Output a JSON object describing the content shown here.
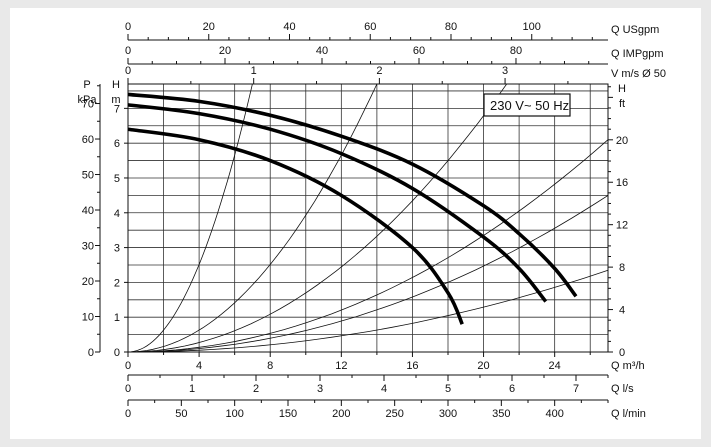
{
  "chart_data": {
    "type": "line",
    "legend_box": "230 V~ 50 Hz",
    "grid": true,
    "x": {
      "label": "Q m³/h",
      "range": [
        0,
        27
      ],
      "ticks": [
        0,
        4,
        8,
        12,
        16,
        20,
        24
      ]
    },
    "secondary_x_axes": [
      {
        "label": "Q USgpm",
        "position": "top",
        "ticks": [
          0,
          20,
          40,
          60,
          80,
          100
        ],
        "minor_step": 5,
        "m3h_per_unit": 0.2271
      },
      {
        "label": "Q IMPgpm",
        "position": "top",
        "ticks": [
          0,
          20,
          40,
          60,
          80
        ],
        "minor_step": 5,
        "m3h_per_unit": 0.2728
      },
      {
        "label": "V m/s Ø 50",
        "position": "top",
        "ticks": [
          0,
          1,
          2,
          3
        ],
        "minor_step": 0.5,
        "m3h_per_unit": 7.07
      },
      {
        "label": "Q l/s",
        "position": "bottom",
        "ticks": [
          0,
          1,
          2,
          3,
          4,
          5,
          6,
          7
        ],
        "minor_step": 0.5,
        "m3h_per_unit": 3.6
      },
      {
        "label": "Q l/min",
        "position": "bottom",
        "ticks": [
          0,
          50,
          100,
          150,
          200,
          250,
          300,
          350,
          400
        ],
        "minor_step": 25,
        "m3h_per_unit": 0.06
      }
    ],
    "y_left_head": {
      "label": "H",
      "unit": "m",
      "range": [
        0,
        7.7
      ],
      "ticks": [
        0,
        1,
        2,
        3,
        4,
        5,
        6,
        7
      ]
    },
    "y_left_pressure": {
      "label": "P",
      "unit": "kPa",
      "range": [
        0,
        75.5
      ],
      "ticks": [
        0,
        10,
        20,
        30,
        40,
        50,
        60,
        70
      ]
    },
    "y_right_head": {
      "label": "H",
      "unit": "ft",
      "range": [
        0,
        25.26
      ],
      "ticks": [
        0,
        4,
        8,
        12,
        16,
        20
      ]
    },
    "series": [
      {
        "x": [
          0,
          4,
          8,
          12,
          16,
          20,
          22,
          24,
          25.2
        ],
        "y": [
          7.4,
          7.2,
          6.8,
          6.2,
          5.4,
          4.2,
          3.4,
          2.4,
          1.6
        ]
      },
      {
        "x": [
          0,
          4,
          8,
          12,
          16,
          20,
          22,
          23.5
        ],
        "y": [
          7.1,
          6.85,
          6.4,
          5.7,
          4.7,
          3.3,
          2.4,
          1.45
        ]
      },
      {
        "x": [
          0,
          4,
          8,
          12,
          16,
          18,
          18.8
        ],
        "y": [
          6.4,
          6.1,
          5.5,
          4.5,
          3.0,
          1.7,
          0.8
        ]
      }
    ],
    "system_curves": [
      {
        "label": "",
        "x": [
          0,
          7
        ],
        "y": [
          0,
          7.7
        ]
      },
      {
        "label": "",
        "x": [
          0,
          14
        ],
        "y": [
          0,
          7.7
        ]
      },
      {
        "label": "",
        "x": [
          0,
          21.3
        ],
        "y": [
          0,
          7.7
        ]
      },
      {
        "label": "",
        "x": [
          0,
          27
        ],
        "y": [
          0,
          6.1
        ]
      },
      {
        "label": "",
        "x": [
          0,
          27
        ],
        "y": [
          0,
          4.5
        ]
      },
      {
        "label": "",
        "x": [
          0,
          27
        ],
        "y": [
          0,
          2.35
        ]
      }
    ]
  }
}
